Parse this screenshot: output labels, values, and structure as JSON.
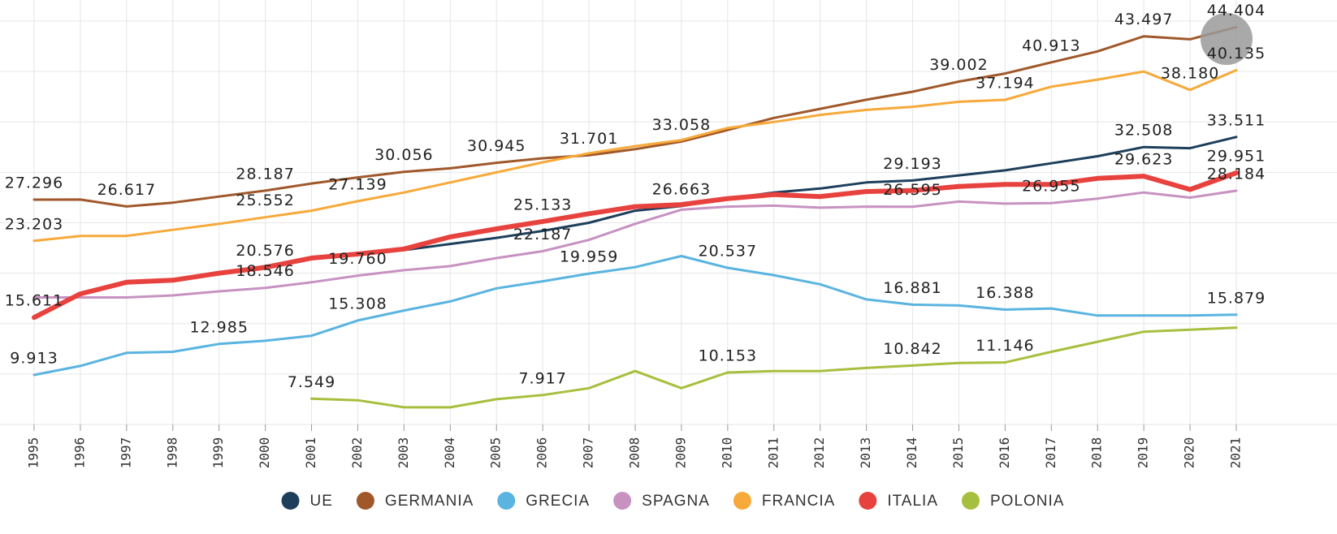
{
  "chart_data": {
    "type": "line",
    "categories": [
      "1995",
      "1996",
      "1997",
      "1998",
      "1999",
      "2000",
      "2001",
      "2002",
      "2003",
      "2004",
      "2005",
      "2006",
      "2007",
      "2008",
      "2009",
      "2010",
      "2011",
      "2012",
      "2013",
      "2014",
      "2015",
      "2016",
      "2017",
      "2018",
      "2019",
      "2020",
      "2021"
    ],
    "ylim": [
      5,
      46
    ],
    "yticks": [
      5,
      10,
      15,
      20,
      25,
      30,
      35,
      40,
      45
    ],
    "grid": true,
    "legend": "bottom",
    "series": [
      {
        "name": "UE",
        "color": "#1d3f5b",
        "width": 3,
        "values": [
          15.6,
          17.9,
          19.1,
          19.3,
          20.0,
          20.7,
          21.5,
          21.9,
          22.3,
          22.9,
          23.5,
          24.2,
          25.0,
          26.2,
          26.663,
          27.4,
          28.0,
          28.4,
          29.0,
          29.193,
          29.7,
          30.2,
          30.9,
          31.6,
          32.508,
          32.4,
          33.511
        ],
        "value_labels": [
          null,
          null,
          null,
          null,
          null,
          null,
          null,
          null,
          null,
          null,
          null,
          null,
          null,
          null,
          "26.663",
          null,
          null,
          null,
          null,
          "29.193",
          null,
          null,
          null,
          null,
          "32.508",
          null,
          "33.511"
        ]
      },
      {
        "name": "GERMANIA",
        "color": "#a0582a",
        "width": 3,
        "values": [
          27.296,
          27.3,
          26.617,
          27.0,
          27.6,
          28.187,
          28.9,
          29.5,
          30.056,
          30.4,
          30.945,
          31.4,
          31.701,
          32.3,
          33.058,
          34.2,
          35.4,
          36.3,
          37.2,
          38.0,
          39.002,
          39.8,
          40.913,
          42.0,
          43.497,
          43.2,
          44.404
        ],
        "value_labels": [
          "27.296",
          null,
          "26.617",
          null,
          null,
          "28.187",
          null,
          null,
          "30.056",
          null,
          "30.945",
          null,
          "31.701",
          null,
          "33.058",
          null,
          null,
          null,
          null,
          null,
          "39.002",
          null,
          "40.913",
          null,
          "43.497",
          null,
          "44.404"
        ]
      },
      {
        "name": "GRECIA",
        "color": "#5ab4e0",
        "width": 3,
        "values": [
          9.913,
          10.8,
          12.1,
          12.2,
          12.985,
          13.3,
          13.8,
          15.308,
          16.3,
          17.2,
          18.5,
          19.2,
          19.959,
          20.6,
          21.7,
          20.537,
          19.8,
          18.9,
          17.4,
          16.881,
          16.8,
          16.388,
          16.5,
          15.8,
          15.8,
          15.8,
          15.879
        ],
        "value_labels": [
          "9.913",
          null,
          null,
          null,
          "12.985",
          null,
          null,
          "15.308",
          null,
          null,
          null,
          null,
          "19.959",
          null,
          null,
          "20.537",
          null,
          null,
          null,
          "16.881",
          null,
          "16.388",
          null,
          null,
          null,
          null,
          "15.879"
        ]
      },
      {
        "name": "SPAGNA",
        "color": "#c792c1",
        "width": 3,
        "values": [
          17.6,
          17.6,
          17.6,
          17.8,
          18.2,
          18.546,
          19.1,
          19.76,
          20.3,
          20.7,
          21.5,
          22.187,
          23.3,
          24.9,
          26.3,
          26.6,
          26.7,
          26.5,
          26.6,
          26.595,
          27.1,
          26.9,
          26.955,
          27.4,
          28.0,
          27.5,
          28.184
        ],
        "value_labels": [
          null,
          null,
          null,
          null,
          null,
          "18.546",
          null,
          "19.760",
          null,
          null,
          null,
          "22.187",
          null,
          null,
          null,
          null,
          null,
          null,
          null,
          "26.595",
          null,
          null,
          "26.955",
          null,
          null,
          null,
          "28.184"
        ]
      },
      {
        "name": "FRANCIA",
        "color": "#f7a93a",
        "width": 3,
        "values": [
          23.203,
          23.7,
          23.7,
          24.3,
          24.9,
          25.552,
          26.2,
          27.139,
          28.0,
          29.0,
          30.0,
          31.0,
          31.9,
          32.6,
          33.2,
          34.4,
          35.0,
          35.7,
          36.2,
          36.5,
          37.0,
          37.194,
          38.5,
          39.2,
          40.0,
          38.18,
          40.135
        ],
        "value_labels": [
          "23.203",
          null,
          null,
          null,
          null,
          "25.552",
          null,
          "27.139",
          null,
          null,
          null,
          null,
          null,
          null,
          null,
          null,
          null,
          null,
          null,
          null,
          null,
          "37.194",
          null,
          null,
          null,
          "38.180",
          "40.135"
        ]
      },
      {
        "name": "ITALIA",
        "color": "#e8423e",
        "width": 6,
        "values": [
          15.611,
          17.95,
          19.1,
          19.3,
          20.0,
          20.576,
          21.5,
          21.9,
          22.4,
          23.6,
          24.4,
          25.133,
          25.9,
          26.6,
          26.8,
          27.4,
          27.8,
          27.6,
          28.1,
          28.2,
          28.6,
          28.8,
          28.8,
          29.4,
          29.623,
          28.3,
          29.951
        ],
        "value_labels": [
          "15.611",
          null,
          null,
          null,
          null,
          "20.576",
          null,
          null,
          null,
          null,
          null,
          "25.133",
          null,
          null,
          null,
          null,
          null,
          null,
          null,
          null,
          null,
          null,
          null,
          null,
          "29.623",
          null,
          "29.951"
        ]
      },
      {
        "name": "POLONIA",
        "color": "#a7bf3e",
        "width": 3,
        "values": [
          null,
          null,
          null,
          null,
          null,
          null,
          7.549,
          7.4,
          6.7,
          6.7,
          7.5,
          7.917,
          8.6,
          10.3,
          8.6,
          10.153,
          10.3,
          10.3,
          10.6,
          10.842,
          11.1,
          11.146,
          12.2,
          13.2,
          14.2,
          14.4,
          14.6
        ],
        "value_labels": [
          null,
          null,
          null,
          null,
          null,
          null,
          "7.549",
          null,
          null,
          null,
          null,
          "7.917",
          null,
          null,
          null,
          "10.153",
          null,
          null,
          null,
          "10.842",
          null,
          "11.146",
          null,
          null,
          null,
          null,
          null
        ]
      }
    ]
  }
}
